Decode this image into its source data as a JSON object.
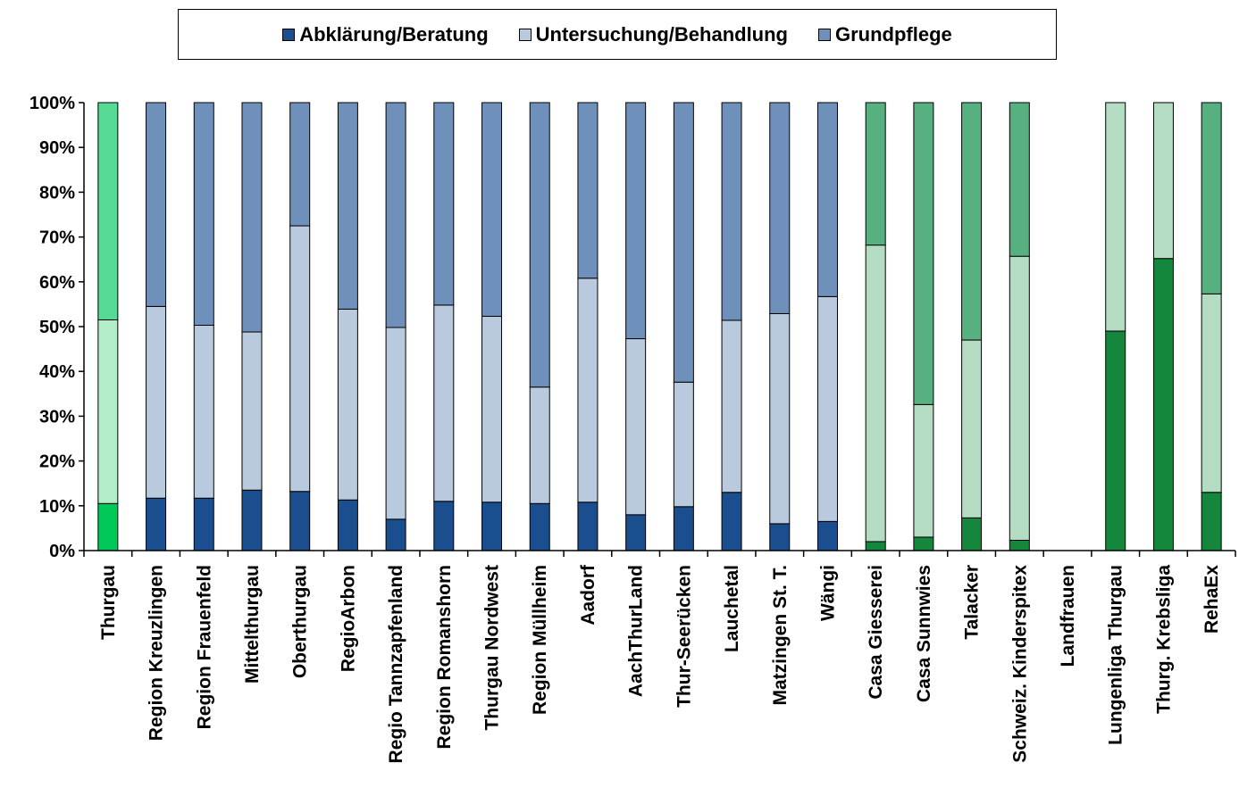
{
  "chart_data": {
    "type": "bar",
    "stacked": true,
    "percent_stacked": true,
    "title": "",
    "xlabel": "",
    "ylabel": "",
    "ylim": [
      0,
      100
    ],
    "yticks": [
      "0%",
      "10%",
      "20%",
      "30%",
      "40%",
      "50%",
      "60%",
      "70%",
      "80%",
      "90%",
      "100%"
    ],
    "grid": false,
    "legend_position": "top",
    "categories": [
      "Thurgau",
      "Region Kreuzlingen",
      "Region Frauenfeld",
      "Mittelthurgau",
      "Oberthurgau",
      "RegioArbon",
      "Regio Tannzapfenland",
      "Region Romanshorn",
      "Thurgau Nordwest",
      "Region Müllheim",
      "Aadorf",
      "AachThurLand",
      "Thur-Seerücken",
      "Lauchetal",
      "Matzingen St. T.",
      "Wängi",
      "Casa Giesserei",
      "Casa Sunnwies",
      "Talacker",
      "Schweiz. Kinderspitex",
      "Landfrauen",
      "Lungenliga Thurgau",
      "Thurg. Krebsliga",
      "RehaEx"
    ],
    "series": [
      {
        "name": "Abklärung/Beratung",
        "color": "#1a4e8f",
        "values": [
          10.5,
          11.7,
          11.7,
          13.5,
          13.2,
          11.3,
          7.0,
          11.0,
          10.8,
          10.5,
          10.8,
          8.0,
          9.8,
          13.0,
          6.0,
          6.5,
          2.0,
          3.0,
          7.3,
          2.3,
          0,
          49.0,
          65.2,
          13.0
        ]
      },
      {
        "name": "Untersuchung/Behandlung",
        "color": "#b9cade",
        "values": [
          41.0,
          42.8,
          38.6,
          35.3,
          59.3,
          42.6,
          42.8,
          43.8,
          41.5,
          26.0,
          50.0,
          39.3,
          27.8,
          38.4,
          46.9,
          50.2,
          66.2,
          29.6,
          39.7,
          63.4,
          0,
          51.0,
          34.8,
          44.3
        ]
      },
      {
        "name": "Grundpflege",
        "color": "#7090bc",
        "values": [
          48.5,
          45.5,
          49.7,
          51.2,
          27.5,
          46.1,
          50.2,
          45.2,
          47.7,
          63.5,
          39.2,
          52.7,
          62.4,
          48.6,
          47.1,
          43.3,
          31.8,
          67.4,
          53.0,
          34.3,
          0,
          0,
          0,
          42.7
        ]
      }
    ],
    "bar_colors_override": {
      "Thurgau": [
        "#00c95a",
        "#b3ecc9",
        "#55db94"
      ],
      "Casa Giesserei": [
        "#15873c",
        "#b4dcc2",
        "#57b080"
      ],
      "Casa Sunnwies": [
        "#15873c",
        "#b4dcc2",
        "#57b080"
      ],
      "Talacker": [
        "#15873c",
        "#b4dcc2",
        "#57b080"
      ],
      "Schweiz. Kinderspitex": [
        "#15873c",
        "#b4dcc2",
        "#57b080"
      ],
      "Landfrauen": [
        "#15873c",
        "#b4dcc2",
        "#57b080"
      ],
      "Lungenliga Thurgau": [
        "#15873c",
        "#b4dcc2",
        "#57b080"
      ],
      "Thurg. Krebsliga": [
        "#15873c",
        "#b4dcc2",
        "#57b080"
      ],
      "RehaEx": [
        "#15873c",
        "#b4dcc2",
        "#57b080"
      ]
    }
  },
  "legend": {
    "items": [
      {
        "label": "Abklärung/Beratung",
        "color": "#1a4e8f"
      },
      {
        "label": "Untersuchung/Behandlung",
        "color": "#b9cade"
      },
      {
        "label": "Grundpflege",
        "color": "#7090bc"
      }
    ]
  }
}
